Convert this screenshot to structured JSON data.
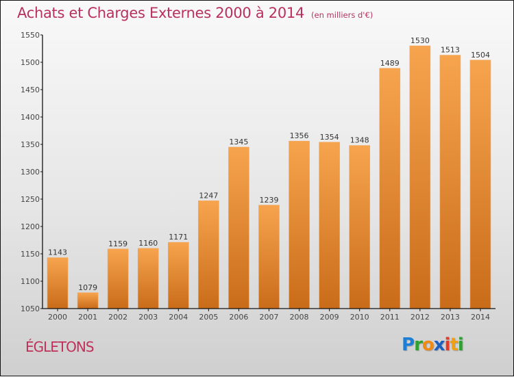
{
  "header": {
    "title": "Achats et Charges Externes 2000 à 2014",
    "subtitle": "(en milliers d'€)"
  },
  "footer": {
    "city": "ÉGLETONS",
    "logo_letters": [
      {
        "ch": "P",
        "color": "#1c7fd6"
      },
      {
        "ch": "r",
        "color": "#2fa12f"
      },
      {
        "ch": "o",
        "color": "#f08a12"
      },
      {
        "ch": "x",
        "color": "#1c5fbf"
      },
      {
        "ch": "i",
        "color": "#e23a2a"
      },
      {
        "ch": "t",
        "color": "#f0a010"
      },
      {
        "ch": "i",
        "color": "#2fa12f"
      }
    ]
  },
  "chart_data": {
    "type": "bar",
    "title": "Achats et Charges Externes 2000 à 2014",
    "subtitle": "(en milliers d'€)",
    "xlabel": "",
    "ylabel": "",
    "categories": [
      "2000",
      "2001",
      "2002",
      "2003",
      "2004",
      "2005",
      "2006",
      "2007",
      "2008",
      "2009",
      "2010",
      "2011",
      "2012",
      "2013",
      "2014"
    ],
    "values": [
      1143,
      1079,
      1159,
      1160,
      1171,
      1247,
      1345,
      1239,
      1356,
      1354,
      1348,
      1489,
      1530,
      1513,
      1504
    ],
    "ylim": [
      1050,
      1550
    ],
    "yticks": [
      1050,
      1100,
      1150,
      1200,
      1250,
      1300,
      1350,
      1400,
      1450,
      1500,
      1550
    ],
    "grid": false,
    "legend": "none",
    "bar_color_top": "#f7a44e",
    "bar_color_bottom": "#c96c1a"
  }
}
